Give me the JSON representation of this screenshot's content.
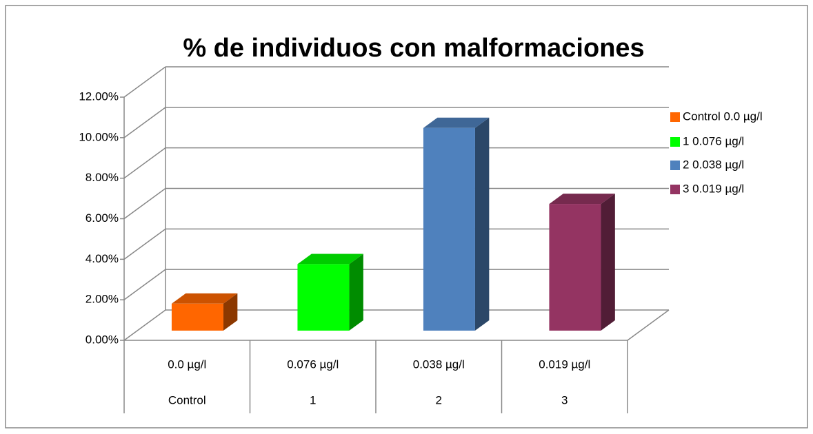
{
  "chart_data": {
    "type": "bar3d",
    "title": "% de individuos con malformaciones",
    "categories": [
      "0.0 µg/l",
      "0.076 µg/l",
      "0.038 µg/l",
      "0.019 µg/l"
    ],
    "category_groups": [
      "Control",
      "1",
      "2",
      "3"
    ],
    "values": [
      1.33,
      3.28,
      10.0,
      6.25
    ],
    "colors": [
      "#ff6600",
      "#00ff00",
      "#4f81bd",
      "#943462"
    ],
    "legend": [
      "Control 0.0 µg/l",
      "1 0.076 µg/l",
      "2 0.038 µg/l",
      "3 0.019 µg/l"
    ],
    "ylim": [
      0,
      12
    ],
    "yticks": [
      {
        "value": 0,
        "label": "0.00%"
      },
      {
        "value": 2,
        "label": "2.00%"
      },
      {
        "value": 4,
        "label": "4.00%"
      },
      {
        "value": 6,
        "label": "6.00%"
      },
      {
        "value": 8,
        "label": "8.00%"
      },
      {
        "value": 10,
        "label": "10.00%"
      },
      {
        "value": 12,
        "label": "12.00%"
      }
    ],
    "grid": true,
    "legend_position": "right"
  }
}
